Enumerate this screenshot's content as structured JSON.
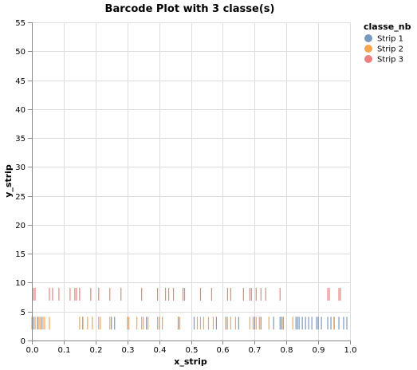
{
  "chart_data": {
    "type": "scatter",
    "mark": "tick",
    "title": "Barcode Plot with 3 classe(s)",
    "xlabel": "x_strip",
    "ylabel": "y_strip",
    "xlim": [
      0,
      1
    ],
    "ylim": [
      0,
      55
    ],
    "xticks": [
      "0.0",
      "0.1",
      "0.2",
      "0.3",
      "0.4",
      "0.5",
      "0.6",
      "0.7",
      "0.8",
      "0.9",
      "1.0"
    ],
    "yticks": [
      "0",
      "5",
      "10",
      "15",
      "20",
      "25",
      "30",
      "35",
      "40",
      "45",
      "50",
      "55"
    ],
    "grid": true,
    "legend": {
      "title": "classe_nb",
      "position": "top-right"
    },
    "series": [
      {
        "name": "Strip 1",
        "color": "#4c78a8",
        "y": 3,
        "x": [
          0.005,
          0.018,
          0.03,
          0.16,
          0.25,
          0.26,
          0.36,
          0.46,
          0.51,
          0.58,
          0.61,
          0.65,
          0.7,
          0.72,
          0.76,
          0.78,
          0.785,
          0.79,
          0.83,
          0.835,
          0.84,
          0.85,
          0.86,
          0.87,
          0.88,
          0.895,
          0.9,
          0.91,
          0.93,
          0.94,
          0.95,
          0.965,
          0.98,
          0.99
        ]
      },
      {
        "name": "Strip 2",
        "color": "#f58518",
        "y": 3,
        "x": [
          0.0,
          0.01,
          0.02,
          0.025,
          0.035,
          0.04,
          0.055,
          0.15,
          0.16,
          0.175,
          0.19,
          0.21,
          0.215,
          0.245,
          0.3,
          0.305,
          0.33,
          0.345,
          0.35,
          0.365,
          0.395,
          0.4,
          0.41,
          0.46,
          0.465,
          0.52,
          0.53,
          0.54,
          0.555,
          0.57,
          0.61,
          0.615,
          0.625,
          0.64,
          0.685,
          0.695,
          0.705,
          0.715,
          0.72,
          0.745,
          0.79,
          0.82,
          0.95
        ]
      },
      {
        "name": "Strip 3",
        "color": "#e45756",
        "y": 8,
        "x": [
          0.005,
          0.01,
          0.055,
          0.065,
          0.085,
          0.12,
          0.135,
          0.14,
          0.15,
          0.185,
          0.21,
          0.245,
          0.28,
          0.345,
          0.395,
          0.42,
          0.43,
          0.445,
          0.475,
          0.48,
          0.53,
          0.565,
          0.615,
          0.625,
          0.665,
          0.685,
          0.69,
          0.705,
          0.72,
          0.735,
          0.78,
          0.93,
          0.935,
          0.965,
          0.97
        ]
      }
    ]
  }
}
